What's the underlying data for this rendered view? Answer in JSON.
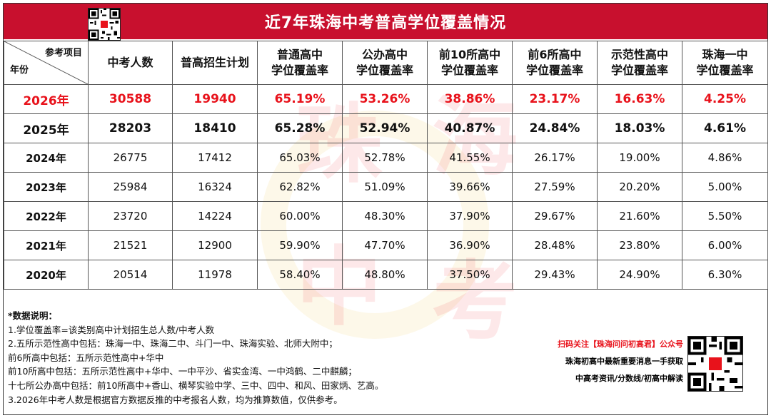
{
  "title": "近7年珠海中考普高学位覆盖情况",
  "header": {
    "corner_top": "参考项目",
    "corner_bottom": "年份",
    "columns": [
      "中考人数",
      "普高招生计划",
      "普通高中\n学位覆盖率",
      "公办高中\n学位覆盖率",
      "前10所高中\n学位覆盖率",
      "前6所高中\n学位覆盖率",
      "示范性高中\n学位覆盖率",
      "珠海一中\n学位覆盖率"
    ]
  },
  "rows": [
    {
      "year": "2026年",
      "cells": [
        "30588",
        "19940",
        "65.19%",
        "53.26%",
        "38.86%",
        "23.17%",
        "16.63%",
        "4.25%"
      ],
      "style": "highlight"
    },
    {
      "year": "2025年",
      "cells": [
        "28203",
        "18410",
        "65.28%",
        "52.94%",
        "40.87%",
        "24.84%",
        "18.03%",
        "4.61%"
      ],
      "style": "bold"
    },
    {
      "year": "2024年",
      "cells": [
        "26775",
        "17412",
        "65.03%",
        "52.78%",
        "41.55%",
        "26.17%",
        "19.00%",
        "4.86%"
      ],
      "style": "normal"
    },
    {
      "year": "2023年",
      "cells": [
        "25984",
        "16324",
        "62.82%",
        "51.09%",
        "39.66%",
        "27.59%",
        "20.20%",
        "5.00%"
      ],
      "style": "normal"
    },
    {
      "year": "2022年",
      "cells": [
        "23720",
        "14224",
        "60.00%",
        "48.30%",
        "37.90%",
        "29.67%",
        "21.60%",
        "5.50%"
      ],
      "style": "normal"
    },
    {
      "year": "2021年",
      "cells": [
        "21521",
        "12900",
        "59.90%",
        "47.70%",
        "36.90%",
        "28.48%",
        "23.80%",
        "6.00%"
      ],
      "style": "normal"
    },
    {
      "year": "2020年",
      "cells": [
        "20514",
        "11978",
        "58.40%",
        "48.80%",
        "37.50%",
        "29.43%",
        "24.90%",
        "6.30%"
      ],
      "style": "normal"
    }
  ],
  "notes": {
    "title": "*数据说明：",
    "lines": [
      "1.学位覆盖率=该类别高中计划招生总人数/中考人数",
      "2.五所示范性高中包括：珠海一中、珠海二中、斗门一中、珠海实验、北师大附中；",
      "前6所高中包括：五所示范性高中+华中",
      "前10所高中包括：五所示范性高中+华中、一中平沙、省实金湾、一中鸿鹤、二中麒麟；",
      "十七所公办高中包括：前10所高中+香山、横琴实验中学、三中、四中、和风、田家炳、艺高。",
      "3.2026年中考人数是根据官方数据反推的中考报名人数，均为推算数值，仅供参考。"
    ]
  },
  "promo": {
    "line1": "扫码关注【珠海问问初高君】公众号",
    "line2": "珠海初高中最新重要消息一手获取",
    "line3": "中高考资讯/分数线/初高中解读"
  },
  "watermark": {
    "chars": [
      "珠",
      "海",
      "中",
      "考"
    ]
  },
  "colors": {
    "title_bg": "#c8102e",
    "highlight_text": "#e8121b"
  }
}
